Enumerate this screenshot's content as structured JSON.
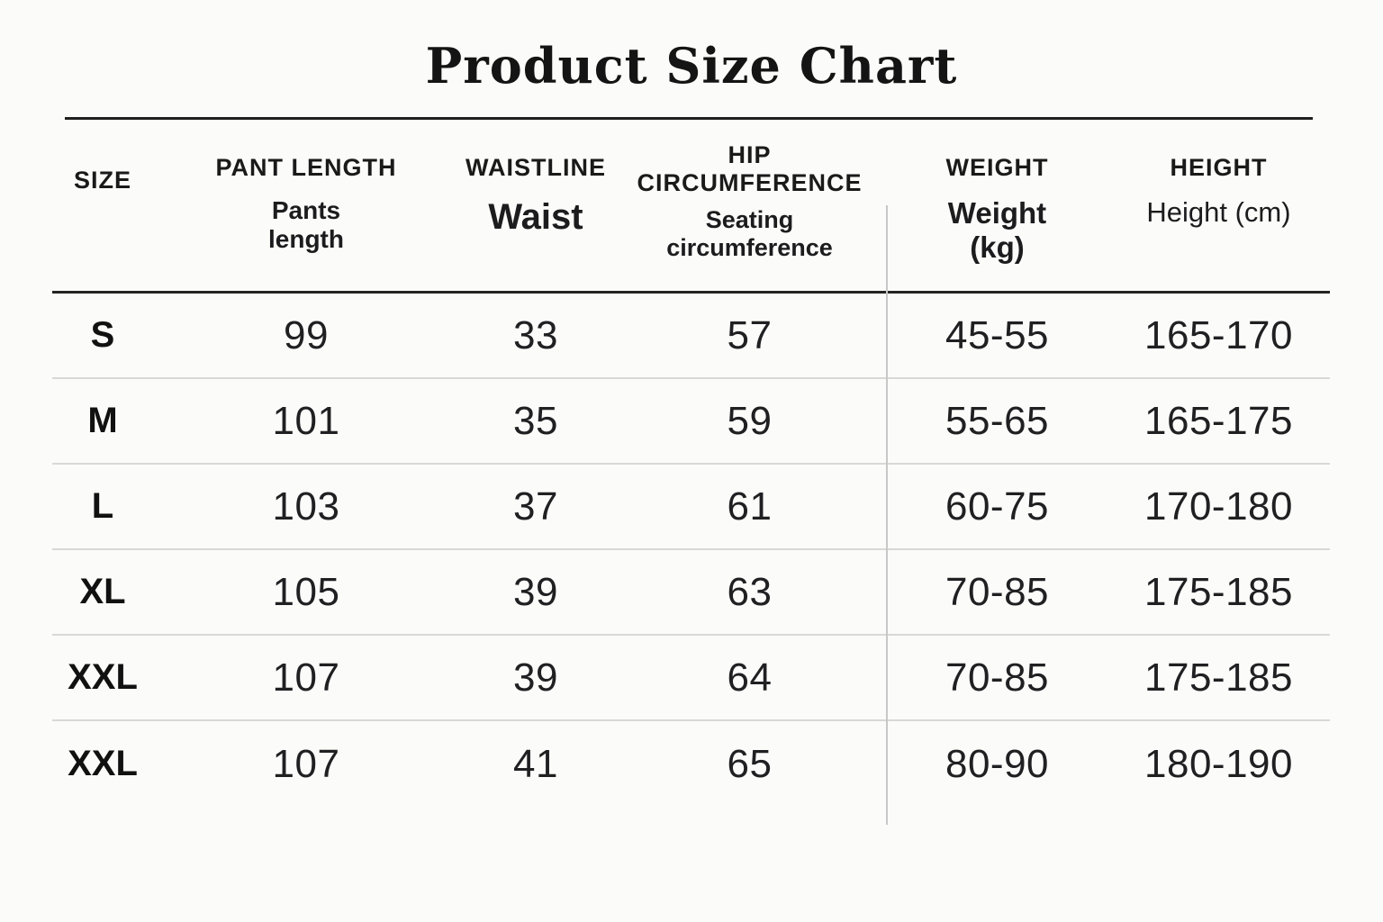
{
  "title": "Product Size Chart",
  "colors": {
    "background": "#fbfbf9",
    "text": "#1d1d1f",
    "title_rule": "#1f1f1f",
    "header_rule": "#242424",
    "row_divider": "#d8d8d8",
    "column_divider": "#c8c8c8"
  },
  "chart_data": {
    "type": "table",
    "title": "Product Size Chart",
    "columns": [
      {
        "label": "SIZE",
        "sublabel": ""
      },
      {
        "label": "PANT LENGTH",
        "sublabel": "Pants length"
      },
      {
        "label": "WAISTLINE",
        "sublabel": "Waist"
      },
      {
        "label": "HIP CIRCUMFERENCE",
        "sublabel": "Seating circumference"
      },
      {
        "label": "WEIGHT",
        "sublabel": "Weight (kg)"
      },
      {
        "label": "HEIGHT",
        "sublabel": "Height (cm)"
      }
    ],
    "rows": [
      [
        "S",
        "99",
        "33",
        "57",
        "45-55",
        "165-170"
      ],
      [
        "M",
        "101",
        "35",
        "59",
        "55-65",
        "165-175"
      ],
      [
        "L",
        "103",
        "37",
        "61",
        "60-75",
        "170-180"
      ],
      [
        "XL",
        "105",
        "39",
        "63",
        "70-85",
        "175-185"
      ],
      [
        "XXL",
        "107",
        "39",
        "64",
        "70-85",
        "175-185"
      ],
      [
        "XXL",
        "107",
        "41",
        "65",
        "80-90",
        "180-190"
      ]
    ]
  }
}
